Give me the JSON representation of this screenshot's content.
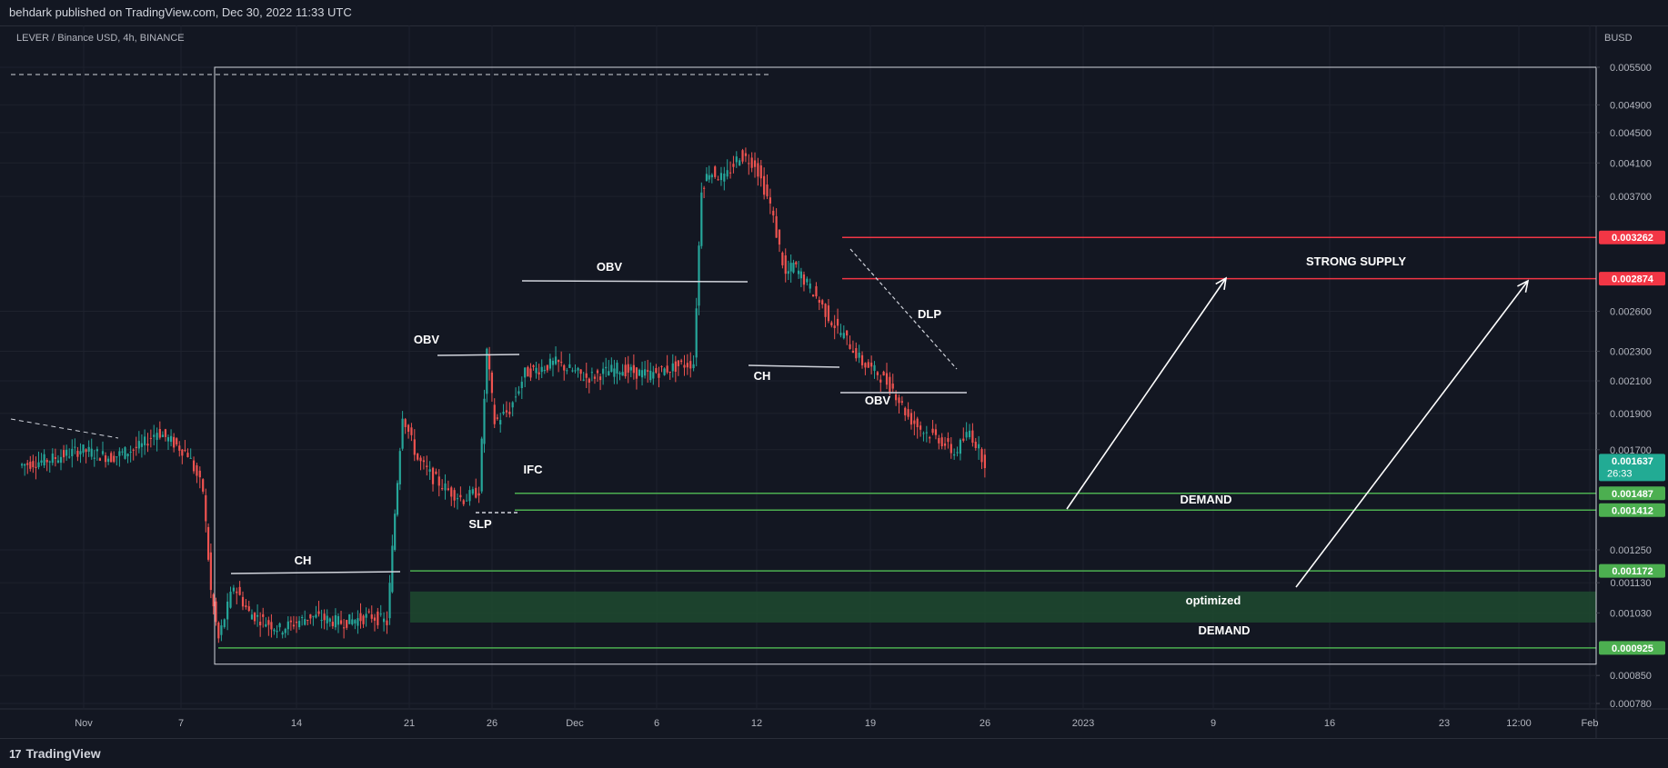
{
  "header": {
    "published": "behdark published on TradingView.com, Dec 30, 2022 11:33 UTC"
  },
  "footer": {
    "brand": "TradingView",
    "brand_icon": "tradingview-logo-icon"
  },
  "chart_data": {
    "type": "candlestick",
    "symbol_label": "LEVER / Binance USD, 4h, BINANCE",
    "currency": "BUSD",
    "y_scale": "log",
    "ylim": [
      0.00075,
      0.0056
    ],
    "price_ticks": [
      "0.005500",
      "0.004900",
      "0.004500",
      "0.004100",
      "0.003700",
      "0.002600",
      "0.002300",
      "0.002100",
      "0.001900",
      "0.001700",
      "0.001250",
      "0.001130",
      "0.001030",
      "0.000850",
      "0.000780"
    ],
    "time_ticks": [
      "Nov",
      "7",
      "14",
      "21",
      "26",
      "Dec",
      "6",
      "12",
      "19",
      "26",
      "2023",
      "9",
      "16",
      "23",
      "12:00",
      "Feb"
    ],
    "price_badges": [
      {
        "value": "0.003262",
        "color": "#f23645"
      },
      {
        "value": "0.002874",
        "color": "#f23645"
      },
      {
        "value": "0.001637",
        "sub": "26:33",
        "color": "#22ab94"
      },
      {
        "value": "0.001487",
        "color": "#4caf50"
      },
      {
        "value": "0.001412",
        "color": "#4caf50"
      },
      {
        "value": "0.001172",
        "color": "#4caf50"
      },
      {
        "value": "0.000925",
        "color": "#4caf50"
      }
    ],
    "annotations": [
      "CH",
      "OBV",
      "OBV",
      "SLP",
      "IFC",
      "CH",
      "OBV",
      "DLP",
      "STRONG SUPPLY",
      "DEMAND",
      "optimized",
      "DEMAND"
    ],
    "price_path": [
      {
        "d": "2022-10-28",
        "p": 0.00162
      },
      {
        "d": "2022-10-30",
        "p": 0.00165
      },
      {
        "d": "2022-11-01",
        "p": 0.0017
      },
      {
        "d": "2022-11-03",
        "p": 0.00166
      },
      {
        "d": "2022-11-05",
        "p": 0.00172
      },
      {
        "d": "2022-11-06",
        "p": 0.0018
      },
      {
        "d": "2022-11-08",
        "p": 0.00168
      },
      {
        "d": "2022-11-09",
        "p": 0.0015
      },
      {
        "d": "2022-11-09T12",
        "p": 0.0011
      },
      {
        "d": "2022-11-10",
        "p": 0.00095
      },
      {
        "d": "2022-11-11",
        "p": 0.00112
      },
      {
        "d": "2022-11-12",
        "p": 0.00103
      },
      {
        "d": "2022-11-14",
        "p": 0.00098
      },
      {
        "d": "2022-11-16",
        "p": 0.00102
      },
      {
        "d": "2022-11-18",
        "p": 0.001
      },
      {
        "d": "2022-11-20",
        "p": 0.00102
      },
      {
        "d": "2022-11-21",
        "p": 0.001
      },
      {
        "d": "2022-11-21T12",
        "p": 0.0014
      },
      {
        "d": "2022-11-22",
        "p": 0.0019
      },
      {
        "d": "2022-11-23",
        "p": 0.00165
      },
      {
        "d": "2022-11-24",
        "p": 0.00156
      },
      {
        "d": "2022-11-25",
        "p": 0.0015
      },
      {
        "d": "2022-11-26",
        "p": 0.00146
      },
      {
        "d": "2022-11-27",
        "p": 0.0015
      },
      {
        "d": "2022-11-27T12",
        "p": 0.0023
      },
      {
        "d": "2022-11-28",
        "p": 0.00185
      },
      {
        "d": "2022-11-29",
        "p": 0.00192
      },
      {
        "d": "2022-11-30",
        "p": 0.00215
      },
      {
        "d": "2022-12-02",
        "p": 0.00222
      },
      {
        "d": "2022-12-04",
        "p": 0.00212
      },
      {
        "d": "2022-12-06",
        "p": 0.00218
      },
      {
        "d": "2022-12-08",
        "p": 0.00214
      },
      {
        "d": "2022-12-10",
        "p": 0.0022
      },
      {
        "d": "2022-12-11",
        "p": 0.00222
      },
      {
        "d": "2022-12-11T12",
        "p": 0.0038
      },
      {
        "d": "2022-12-12",
        "p": 0.004
      },
      {
        "d": "2022-12-13",
        "p": 0.0039
      },
      {
        "d": "2022-12-14",
        "p": 0.0042
      },
      {
        "d": "2022-12-15",
        "p": 0.0041
      },
      {
        "d": "2022-12-16",
        "p": 0.0036
      },
      {
        "d": "2022-12-17",
        "p": 0.0029
      },
      {
        "d": "2022-12-17T12",
        "p": 0.003
      },
      {
        "d": "2022-12-18",
        "p": 0.0029
      },
      {
        "d": "2022-12-19",
        "p": 0.00272
      },
      {
        "d": "2022-12-20",
        "p": 0.00252
      },
      {
        "d": "2022-12-21",
        "p": 0.00238
      },
      {
        "d": "2022-12-22",
        "p": 0.00222
      },
      {
        "d": "2022-12-23",
        "p": 0.00215
      },
      {
        "d": "2022-12-24",
        "p": 0.00205
      },
      {
        "d": "2022-12-25",
        "p": 0.00188
      },
      {
        "d": "2022-12-26",
        "p": 0.0018
      },
      {
        "d": "2022-12-27",
        "p": 0.00176
      },
      {
        "d": "2022-12-28",
        "p": 0.00168
      },
      {
        "d": "2022-12-29",
        "p": 0.0018
      },
      {
        "d": "2022-12-30",
        "p": 0.001637
      }
    ]
  }
}
